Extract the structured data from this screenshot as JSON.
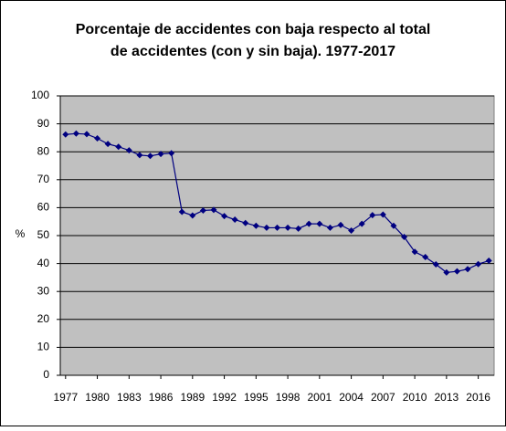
{
  "chart_data": {
    "type": "line",
    "title": [
      "Porcentaje de accidentes con baja respecto al total",
      "de accidentes (con y sin baja). 1977-2017"
    ],
    "y_label": "%",
    "x": [
      1977,
      1978,
      1979,
      1980,
      1981,
      1982,
      1983,
      1984,
      1985,
      1986,
      1987,
      1988,
      1989,
      1990,
      1991,
      1992,
      1993,
      1994,
      1995,
      1996,
      1997,
      1998,
      1999,
      2000,
      2001,
      2002,
      2003,
      2004,
      2005,
      2006,
      2007,
      2008,
      2009,
      2010,
      2011,
      2012,
      2013,
      2014,
      2015,
      2016,
      2017
    ],
    "series": [
      {
        "color": "#000080",
        "values": [
          86.2,
          86.5,
          86.3,
          84.8,
          82.8,
          81.8,
          80.5,
          78.8,
          78.5,
          79.2,
          79.5,
          58.5,
          57.2,
          59,
          59.2,
          57,
          55.7,
          54.5,
          53.5,
          52.8,
          52.8,
          52.8,
          52.5,
          54.2,
          54.2,
          52.8,
          53.8,
          51.8,
          54.2,
          57.3,
          57.5,
          53.5,
          49.5,
          44.2,
          42.3,
          39.7,
          36.8,
          37.2,
          38,
          39.8,
          41
        ]
      }
    ],
    "xlim": [
      1976.5,
      2017.5
    ],
    "xticks": [
      1977,
      1980,
      1983,
      1986,
      1989,
      1992,
      1995,
      1998,
      2001,
      2004,
      2007,
      2010,
      2013,
      2016
    ],
    "ylim": [
      0,
      100
    ],
    "yticks": [
      0,
      10,
      20,
      30,
      40,
      50,
      60,
      70,
      80,
      90,
      100
    ],
    "grid": true,
    "plot_background": "#c0c0c0"
  }
}
